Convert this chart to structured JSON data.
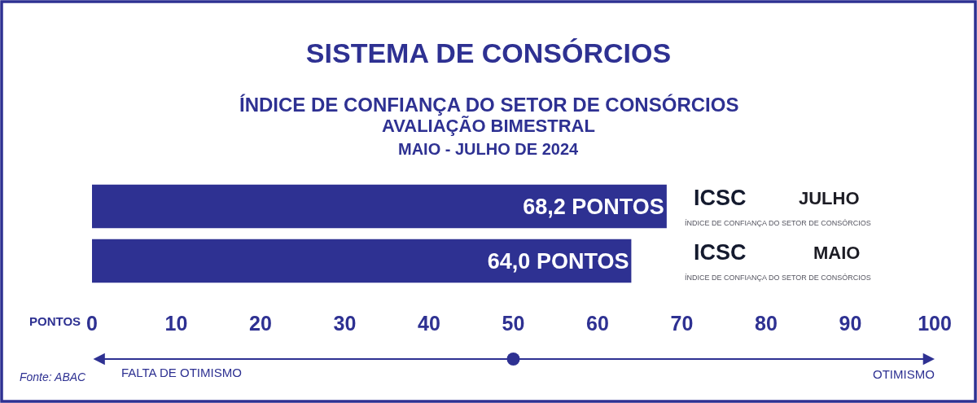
{
  "chart_data": {
    "type": "bar",
    "orientation": "horizontal",
    "title": "SISTEMA DE CONSÓRCIOS",
    "subtitle": "ÍNDICE DE CONFIANÇA DO SETOR DE CONSÓRCIOS\nAVALIAÇÃO BIMESTRAL\nMAIO - JULHO DE 2024",
    "xlabel": "PONTOS",
    "categories": [
      "JULHO",
      "MAIO"
    ],
    "values": [
      68.2,
      64.0
    ],
    "color": "#2e3192",
    "value_labels": [
      "68,2 PONTOS",
      "64,0 PONTOS"
    ],
    "xlim": [
      0,
      100
    ],
    "xticks": [
      0,
      10,
      20,
      30,
      40,
      50,
      60,
      70,
      80,
      90,
      100
    ],
    "annotations": [
      "ICSC",
      "ÍNDICE DE CONFIANÇA DO SETOR DE CONSÓRCIOS",
      "ICSC",
      "ÍNDICE DE CONFIANÇA DO SETOR DE CONSÓRCIOS",
      "FALTA DE OTIMISMO",
      "OTIMISMO",
      "Fonte: ABAC"
    ]
  }
}
